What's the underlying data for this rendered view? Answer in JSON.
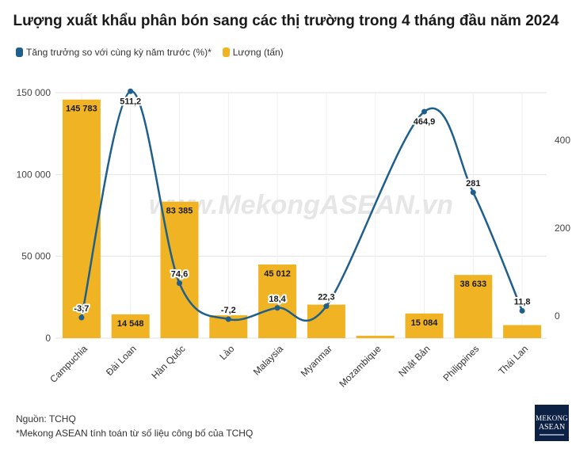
{
  "title": "Lượng xuất khẩu phân bón sang các thị trường trong 4 tháng đầu năm 2024",
  "legend": {
    "growth": "Tăng trưởng so với cùng kỳ năm trước (%)*",
    "volume": "Lượng (tấn)"
  },
  "watermark": "www.MekongASEAN.vn",
  "source": "Nguồn: TCHQ",
  "note": "*Mekong ASEAN tính toán từ số liệu công bố của TCHQ",
  "logo": {
    "line1": "Mekong",
    "line2": "ASEAN"
  },
  "colors": {
    "bar": "#f0b323",
    "line": "#1f5f8b",
    "grid": "#e3e3e3"
  },
  "chart_data": {
    "type": "bar",
    "categories": [
      "Campuchia",
      "Đài Loan",
      "Hàn Quốc",
      "Lào",
      "Malaysia",
      "Myanmar",
      "Mozambique",
      "Nhật Bản",
      "Philippines",
      "Thái Lan"
    ],
    "series": [
      {
        "name": "Lượng (tấn)",
        "type": "bar",
        "axis": "left",
        "values": [
          145783,
          14548,
          83385,
          14000,
          45012,
          20500,
          1500,
          15084,
          38633,
          8000
        ],
        "labels": [
          "145 783",
          "14 548",
          "83 385",
          "",
          "45 012",
          "",
          "",
          "15 084",
          "38 633",
          ""
        ]
      },
      {
        "name": "Tăng trưởng so với cùng kỳ năm trước (%)*",
        "type": "line",
        "axis": "right",
        "values": [
          -3.7,
          511.2,
          74.6,
          -7.2,
          18.4,
          22.3,
          null,
          464.9,
          281,
          11.8
        ],
        "labels": [
          "-3,7",
          "511,2",
          "74,6",
          "-7,2",
          "18,4",
          "22,3",
          "",
          "464,9",
          "281",
          "11,8"
        ]
      }
    ],
    "y_left": {
      "range": [
        0,
        150000
      ],
      "ticks": [
        0,
        50000,
        100000,
        150000
      ],
      "tick_labels": [
        "0",
        "50 000",
        "100 000",
        "150 000"
      ]
    },
    "y_right": {
      "range": [
        -50,
        540
      ],
      "ticks": [
        0,
        200,
        400
      ],
      "tick_labels": [
        "0",
        "200",
        "400"
      ]
    },
    "grid": true,
    "legend_position": "top-left"
  }
}
